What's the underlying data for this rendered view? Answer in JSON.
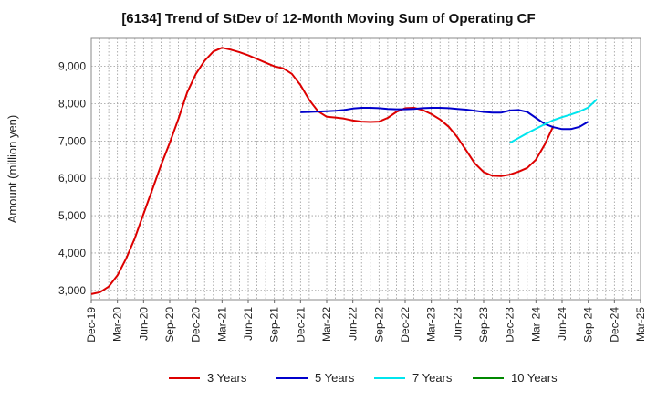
{
  "chart_data": {
    "type": "line",
    "title": "[6134]  Trend of StDev of 12-Month Moving Sum of Operating CF",
    "ylabel": "Amount (million yen)",
    "xlabel": "",
    "ylim": [
      2750,
      9750
    ],
    "yticks": [
      3000,
      4000,
      5000,
      6000,
      7000,
      8000,
      9000
    ],
    "ytick_labels": [
      "3,000",
      "4,000",
      "5,000",
      "6,000",
      "7,000",
      "8,000",
      "9,000"
    ],
    "xtick_labels": [
      "Dec-19",
      "Mar-20",
      "Jun-20",
      "Sep-20",
      "Dec-20",
      "Mar-21",
      "Jun-21",
      "Sep-21",
      "Dec-21",
      "Mar-22",
      "Jun-22",
      "Sep-22",
      "Dec-22",
      "Mar-23",
      "Jun-23",
      "Sep-23",
      "Dec-23",
      "Mar-24",
      "Jun-24",
      "Sep-24",
      "Dec-24",
      "Mar-25"
    ],
    "x_start": "2019-12",
    "x_end": "2025-03",
    "grid": true,
    "legend_position": "bottom",
    "series": [
      {
        "name": "3 Years",
        "color": "#dd0000",
        "start": "2019-12",
        "values": [
          2900,
          2950,
          3100,
          3400,
          3850,
          4400,
          5050,
          5700,
          6350,
          6950,
          7600,
          8300,
          8800,
          9150,
          9400,
          9500,
          9450,
          9380,
          9300,
          9200,
          9100,
          9000,
          8950,
          8800,
          8500,
          8100,
          7800,
          7650,
          7630,
          7600,
          7550,
          7520,
          7510,
          7520,
          7620,
          7780,
          7880,
          7890,
          7830,
          7720,
          7580,
          7380,
          7100,
          6750,
          6400,
          6170,
          6070,
          6060,
          6100,
          6180,
          6280,
          6500,
          6900,
          7400
        ]
      },
      {
        "name": "5 Years",
        "color": "#0000cc",
        "start": "2021-12",
        "values": [
          7770,
          7780,
          7790,
          7800,
          7810,
          7830,
          7870,
          7890,
          7890,
          7880,
          7860,
          7850,
          7850,
          7860,
          7880,
          7890,
          7890,
          7880,
          7860,
          7840,
          7810,
          7780,
          7760,
          7760,
          7820,
          7830,
          7780,
          7620,
          7460,
          7370,
          7320,
          7320,
          7380,
          7520
        ]
      },
      {
        "name": "7 Years",
        "color": "#00e5ee",
        "start": "2023-12",
        "values": [
          6950,
          7080,
          7210,
          7330,
          7450,
          7560,
          7640,
          7710,
          7790,
          7900,
          8120
        ]
      },
      {
        "name": "10 Years",
        "color": "#008800",
        "start": "",
        "values": []
      }
    ]
  }
}
